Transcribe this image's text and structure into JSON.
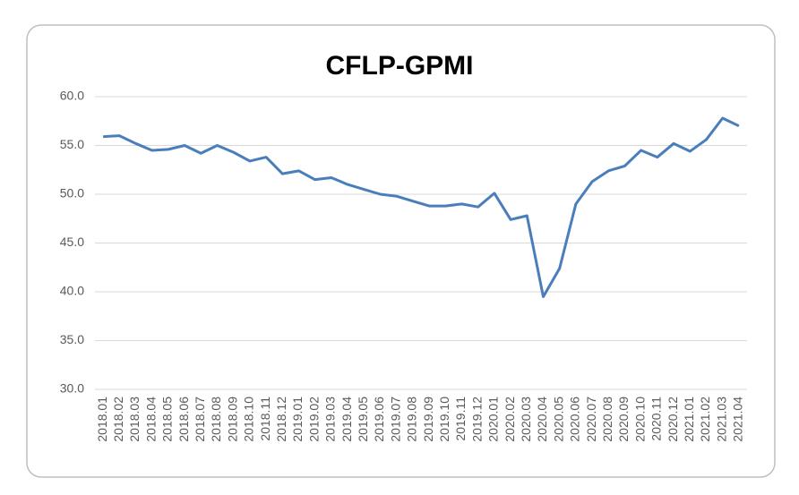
{
  "chart_data": {
    "type": "line",
    "title": "CFLP-GPMI",
    "categories": [
      "2018.01",
      "2018.02",
      "2018.03",
      "2018.04",
      "2018.05",
      "2018.06",
      "2018.07",
      "2018.08",
      "2018.09",
      "2018.10",
      "2018.11",
      "2018.12",
      "2019.01",
      "2019.02",
      "2019.03",
      "2019.04",
      "2019.05",
      "2019.06",
      "2019.07",
      "2019.08",
      "2019.09",
      "2019.10",
      "2019.11",
      "2019.12",
      "2020.01",
      "2020.02",
      "2020.03",
      "2020.04",
      "2020.05",
      "2020.06",
      "2020.07",
      "2020.08",
      "2020.09",
      "2020.10",
      "2020.11",
      "2020.12",
      "2021.01",
      "2021.02",
      "2021.03",
      "2021.04"
    ],
    "values": [
      55.9,
      56.0,
      55.2,
      54.5,
      54.6,
      55.0,
      54.2,
      55.0,
      54.3,
      53.4,
      53.8,
      52.1,
      52.4,
      51.5,
      51.7,
      51.0,
      50.5,
      50.0,
      49.8,
      49.3,
      48.8,
      48.8,
      49.0,
      48.7,
      50.1,
      47.4,
      47.8,
      39.5,
      42.4,
      49.0,
      51.3,
      52.4,
      52.9,
      54.5,
      53.8,
      55.2,
      54.4,
      55.6,
      57.8,
      57.0
    ],
    "color": "#4a7ebb",
    "ylim": [
      30,
      60
    ],
    "yticks": [
      {
        "value": 30,
        "label": "30.0"
      },
      {
        "value": 35,
        "label": "35.0"
      },
      {
        "value": 40,
        "label": "40.0"
      },
      {
        "value": 45,
        "label": "45.0"
      },
      {
        "value": 50,
        "label": "50.0"
      },
      {
        "value": 55,
        "label": "55.0"
      },
      {
        "value": 60,
        "label": "60.0"
      }
    ],
    "grid": true
  }
}
